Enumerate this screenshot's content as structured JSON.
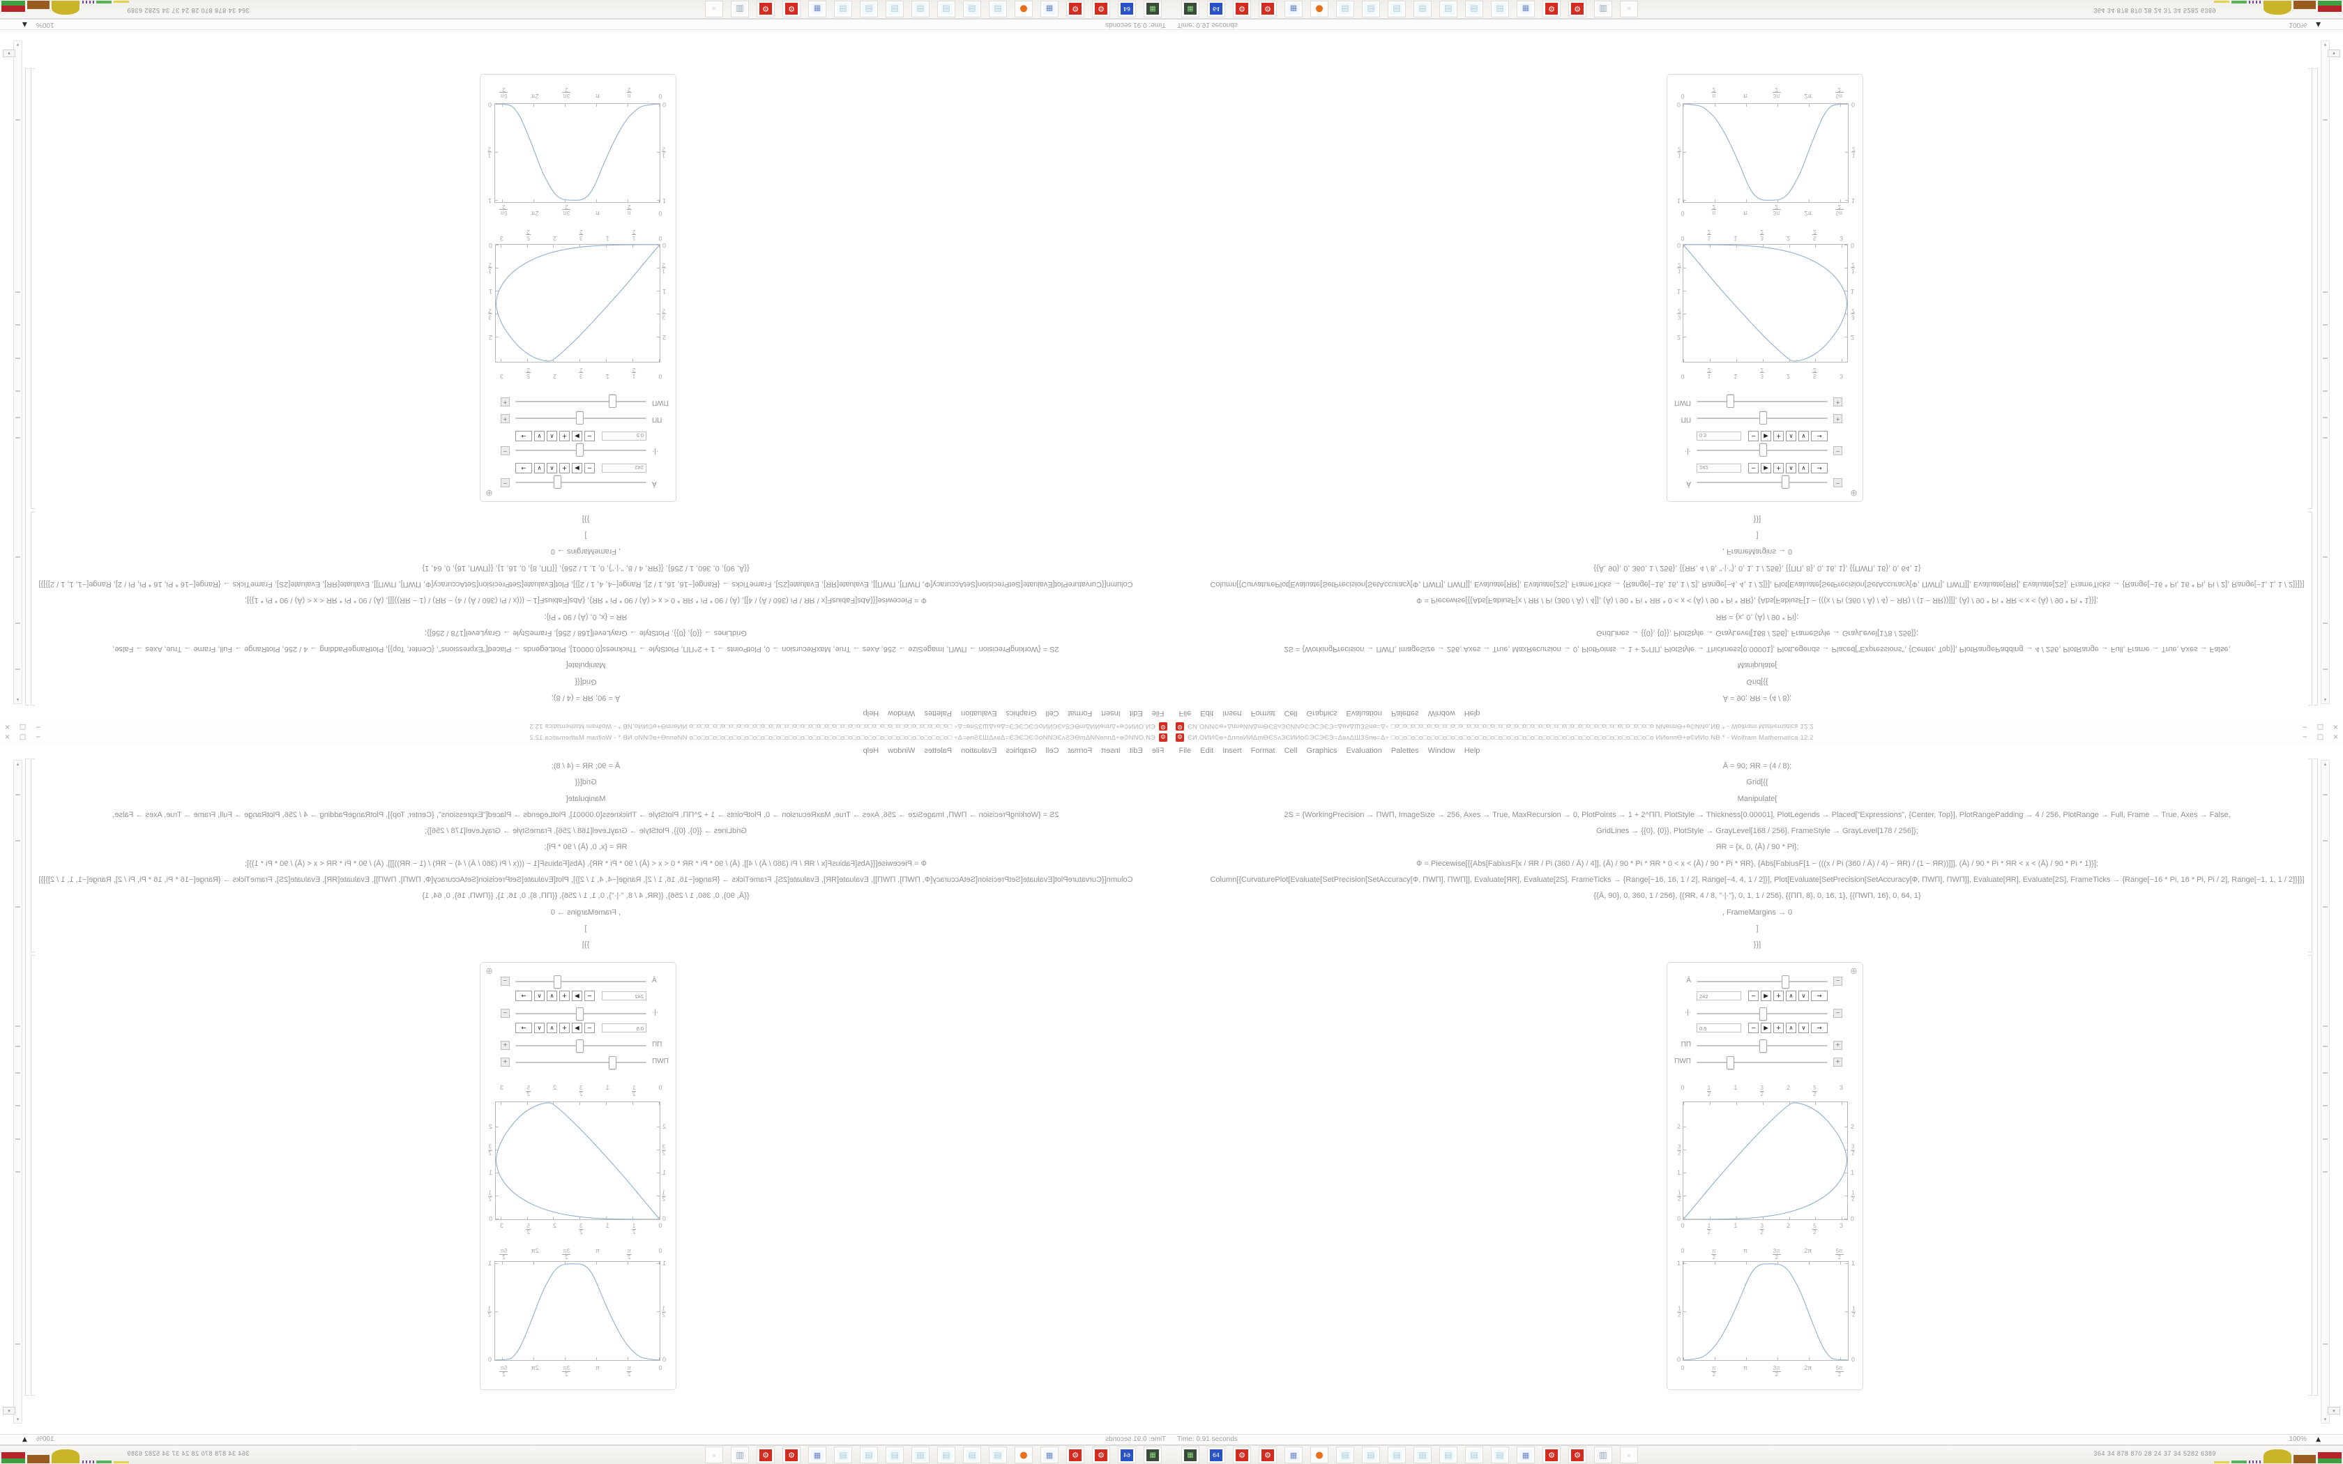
{
  "accent_colors": {
    "curve": "#8fafd0",
    "frame": "#b9b9b9",
    "red_icon": "#d32b20"
  },
  "window": {
    "app_icon_glyph": "⚙",
    "title_garble": "ЄИ.ОИИ©ѳ+ΔппѳИИΔmѲЄЅʌЗЄИИѻ©ЭСЭЄЭ=ΔѳʌΔШЗЅпѳ=Δ÷",
    "title_boxes": "□o□o□o□o□o□o□o□o□o□o□o□o□o□o□o□o□o□o□o□o□o□o□o□o□o□o□o□o□o□o□o□o□o",
    "title_main": "ИИѳппѲ+ѳ©ИИо.NB * - Wolfram Mathematica 12.2",
    "buttons": {
      "minimize": "−",
      "restore": "□",
      "close": "×"
    }
  },
  "menu": {
    "items": [
      "File",
      "Edit",
      "Insert",
      "Format",
      "Cell",
      "Graphics",
      "Evaluation",
      "Palettes",
      "Window",
      "Help"
    ]
  },
  "notebook": {
    "code_lines": [
      "Ā = 90; ЯR = (4 / 8);",
      "Grid[{{",
      "Manipulate[",
      "2S = {WorkingPrecision → ПWП, ImageSize → 256, Axes → True, MaxRecursion → 0, PlotPoints → 1 + 2^ПП, PlotStyle → Thickness[0.00001], PlotLegends → Placed[\"Expressions\", {Center, Top}], PlotRangePadding → 4 / 256, PlotRange → Full, Frame → True, Axes → False,",
      "GridLines → {{0}, {0}}, PlotStyle → GrayLevel[168 / 256], FrameStyle → GrayLevel[178 / 256]};",
      "ЯR = {x, 0, (Ā) / 90 * Pi};",
      "Ф = Piecewise[{{Abs[FabiusF[x / ЯR / Pi (360 / Ā) / 4]], (Ā) / 90 * Pi * ЯR * 0 < x < (Ā) / 90 * Pi * ЯR}, {Abs[FabiusF[1 − (((x / Pi (360 / Ā) / 4) − ЯR) / (1 − ЯR))]]], (Ā) / 90 * Pi * ЯR < x < (Ā) / 90 * Pi * 1}}];",
      "Column[{CurvaturePlot[Evaluate[SetPrecision[SetAccuracy[Ф, ПWП], ПWП]], Evaluate[ЯR], Evaluate[2S], FrameTicks → {Range[−16, 16, 1 / 2], Range[−4, 4, 1 / 2]}], Plot[Evaluate[SetPrecision[SetAccuracy[Ф, ПWП], ПWП]], Evaluate[ЯR], Evaluate[2S], FrameTicks → {Range[−16 * Pi, 16 * Pi, Pi / 2], Range[−1, 1, 1 / 2]}]}]",
      "{{Ā, 90}, 0, 360, 1 / 256}, {{ЯR, 4 / 8, \"·|·\"}, 0, 1, 1 / 256}, {{ПП, 8}, 0, 16, 1}, {{ПWП, 16}, 0, 64, 1}",
      ", FrameMargins → 0",
      "]",
      "}}]"
    ]
  },
  "manipulate": {
    "plus_icon": "⊕",
    "sliders": [
      {
        "name": "slider-A-macron",
        "label": "Ā",
        "value_pct": 67,
        "box": "−",
        "stepper": {
          "field": "242",
          "buttons": [
            "−",
            "▶",
            "+",
            "∧",
            "∨",
            "→"
          ]
        }
      },
      {
        "name": "slider-RR",
        "label": "·|·",
        "value_pct": 50,
        "box": "−",
        "stepper": {
          "field": "0.5",
          "buttons": [
            "−",
            "▶",
            "+",
            "∧",
            "∨",
            "→"
          ]
        }
      },
      {
        "name": "slider-PP",
        "label": "ПП",
        "value_pct": 50,
        "box": "+"
      },
      {
        "name": "slider-PWP",
        "label": "ПWП",
        "value_pct": 25,
        "box": "+"
      }
    ],
    "plots": [
      {
        "name": "curvature-plot",
        "type": "line",
        "xlim": [
          0,
          3.1
        ],
        "ylim": [
          0,
          2.55
        ],
        "x_ticks": [
          {
            "t": "0",
            "p": 0
          },
          {
            "t": "1|2",
            "p": 16.1
          },
          {
            "t": "1",
            "p": 32.3
          },
          {
            "t": "3|2",
            "p": 48.4
          },
          {
            "t": "2",
            "p": 64.5
          },
          {
            "t": "5|2",
            "p": 80.6
          },
          {
            "t": "3",
            "p": 96.8
          }
        ],
        "y_ticks": [
          {
            "t": "0",
            "p": 0
          },
          {
            "t": "1|2",
            "p": 19.6
          },
          {
            "t": "1",
            "p": 39.2
          },
          {
            "t": "3|2",
            "p": 58.8
          },
          {
            "t": "2",
            "p": 78.4
          }
        ],
        "points": [
          [
            0,
            0
          ],
          [
            0.28,
            0.38
          ],
          [
            0.6,
            0.83
          ],
          [
            1.0,
            1.35
          ],
          [
            1.4,
            1.85
          ],
          [
            1.75,
            2.25
          ],
          [
            2.0,
            2.5
          ],
          [
            2.1,
            2.55
          ],
          [
            2.35,
            2.48
          ],
          [
            2.6,
            2.3
          ],
          [
            2.8,
            2.05
          ],
          [
            2.98,
            1.75
          ],
          [
            3.08,
            1.45
          ],
          [
            3.1,
            1.25
          ],
          [
            3.05,
            1.0
          ],
          [
            2.9,
            0.72
          ],
          [
            2.65,
            0.47
          ],
          [
            2.3,
            0.26
          ],
          [
            1.9,
            0.12
          ],
          [
            1.45,
            0.04
          ],
          [
            1.0,
            0.01
          ],
          [
            0.5,
            0.0
          ],
          [
            0.02,
            0.0
          ]
        ]
      },
      {
        "name": "fabius-bell-plot",
        "type": "line",
        "xlim": [
          0,
          8.25
        ],
        "ylim": [
          0,
          1.02
        ],
        "x_ticks": [
          {
            "t": "0",
            "p": 0
          },
          {
            "t": "π|2",
            "p": 19
          },
          {
            "t": "π",
            "p": 38.1
          },
          {
            "t": "3π|2",
            "p": 57.1
          },
          {
            "t": "2π",
            "p": 76.2
          },
          {
            "t": "5π|2",
            "p": 95.2
          }
        ],
        "y_ticks": [
          {
            "t": "0",
            "p": 0
          },
          {
            "t": "1|2",
            "p": 49
          },
          {
            "t": "1",
            "p": 98
          }
        ],
        "points": [
          [
            0,
            0
          ],
          [
            0.75,
            0.01
          ],
          [
            1.2,
            0.06
          ],
          [
            1.7,
            0.17
          ],
          [
            2.2,
            0.35
          ],
          [
            2.7,
            0.57
          ],
          [
            3.0,
            0.72
          ],
          [
            3.3,
            0.87
          ],
          [
            3.6,
            0.96
          ],
          [
            3.9,
            0.995
          ],
          [
            4.1,
            1.0
          ],
          [
            4.6,
            1.0
          ],
          [
            4.9,
            0.99
          ],
          [
            5.2,
            0.95
          ],
          [
            5.5,
            0.86
          ],
          [
            5.9,
            0.7
          ],
          [
            6.3,
            0.48
          ],
          [
            6.7,
            0.27
          ],
          [
            7.0,
            0.13
          ],
          [
            7.3,
            0.04
          ],
          [
            7.55,
            0.006
          ],
          [
            8.25,
            0.0
          ]
        ]
      }
    ]
  },
  "scrollbar": {
    "up": "▴",
    "down": "▾",
    "corner": "▾",
    "marks_pct": [
      5,
      12,
      22,
      40,
      43,
      47,
      52,
      57,
      62,
      88
    ]
  },
  "statusbar": {
    "time": "Time: 0.91 seconds",
    "zoom": "100%",
    "mound": "▲"
  },
  "taskbar": {
    "icons": [
      {
        "name": "display-icon",
        "glyph": "▦",
        "fg": "#86d17a",
        "fill": "#3a4a3a",
        "fsize": 10
      },
      {
        "name": "save64-icon",
        "glyph": "64",
        "fg": "#ffffff",
        "fill": "#2853c8",
        "fsize": 8
      },
      {
        "name": "red-gear-icon",
        "glyph": "⚙",
        "fg": "#ffffff",
        "fill": "#d32b20",
        "fsize": 11
      },
      {
        "name": "red-gear-icon",
        "glyph": "⚙",
        "fg": "#ffffff",
        "fill": "#d32b20",
        "fsize": 11
      },
      {
        "name": "calculator-icon",
        "glyph": "▦",
        "fg": "#6d87c4",
        "fill": "#f4f7fb",
        "fsize": 11
      },
      {
        "name": "firefox-icon",
        "glyph": "●",
        "fg": "#e8701a",
        "fill": "",
        "fsize": 13
      },
      {
        "name": "notepad-icon",
        "glyph": "▤",
        "fg": "#a9cbd9",
        "fill": "#f3fafc",
        "fsize": 12
      },
      {
        "name": "notepad-icon",
        "glyph": "▤",
        "fg": "#a9cbd9",
        "fill": "#f3fafc",
        "fsize": 12
      },
      {
        "name": "notepad-icon",
        "glyph": "▤",
        "fg": "#a9cbd9",
        "fill": "#f3fafc",
        "fsize": 12
      },
      {
        "name": "notepad-icon",
        "glyph": "▤",
        "fg": "#a9cbd9",
        "fill": "#f3fafc",
        "fsize": 12
      },
      {
        "name": "notepad-icon",
        "glyph": "▤",
        "fg": "#a9cbd9",
        "fill": "#f3fafc",
        "fsize": 12
      },
      {
        "name": "notepad-icon",
        "glyph": "▤",
        "fg": "#a9cbd9",
        "fill": "#f3fafc",
        "fsize": 12
      },
      {
        "name": "notepad-icon",
        "glyph": "▤",
        "fg": "#a9cbd9",
        "fill": "#f3fafc",
        "fsize": 12
      },
      {
        "name": "calculator-icon",
        "glyph": "▦",
        "fg": "#6d87c4",
        "fill": "#f4f7fb",
        "fsize": 11
      },
      {
        "name": "red-gear-icon",
        "glyph": "⚙",
        "fg": "#ffffff",
        "fill": "#d32b20",
        "fsize": 11
      },
      {
        "name": "red-gear-icon",
        "glyph": "⚙",
        "fg": "#ffffff",
        "fill": "#d32b20",
        "fsize": 11
      },
      {
        "name": "printer-icon",
        "glyph": "▥",
        "fg": "#93a5b8",
        "fill": "#f7f7f7",
        "fsize": 12
      },
      {
        "name": "faded-icon",
        "glyph": "»",
        "fg": "#d0d0d0",
        "fill": "",
        "fsize": 11
      }
    ],
    "tray_numbers": "364  34  878  870  28  24  37  34  5282 6389",
    "tray_graphs": [
      {
        "type": "bar",
        "color": "#e3d44e",
        "w": 22,
        "h": 3
      },
      {
        "type": "bar",
        "color": "#58b158",
        "w": 22,
        "h": 4
      },
      {
        "type": "dots",
        "color": "#7a3f9e",
        "w": 18,
        "h": 4
      },
      {
        "type": "mound",
        "color": "#c9b42a",
        "w": 40,
        "h": 20
      },
      {
        "type": "bar",
        "color": "#9a5b1e",
        "w": 32,
        "h": 12
      },
      {
        "type": "stack",
        "colors": [
          "#b5242a",
          "#3f9e3f"
        ],
        "w": 34,
        "h": 16
      }
    ]
  }
}
